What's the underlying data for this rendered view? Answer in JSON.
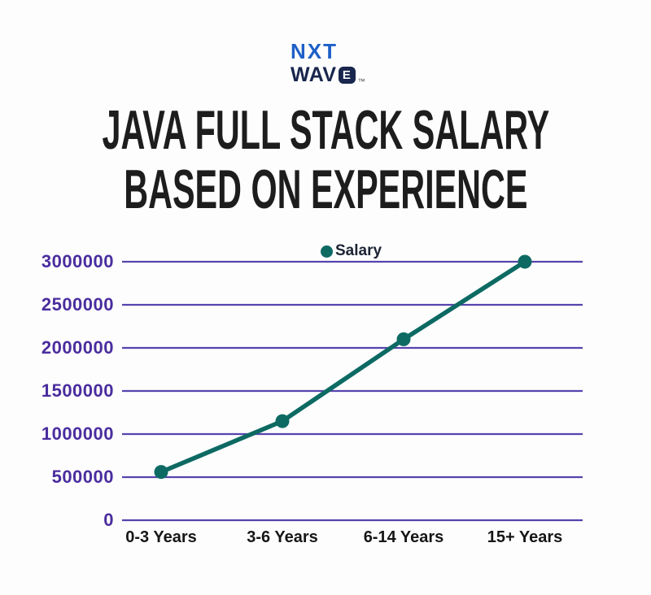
{
  "logo": {
    "line1": "NXT",
    "line2_prefix": "WAV",
    "line2_badge": "E",
    "trademark": "™",
    "colors": {
      "nxt": "#1e5fc8",
      "wave": "#19264d"
    }
  },
  "title": {
    "line1": "JAVA FULL STACK SALARY",
    "line2": "BASED ON EXPERIENCE"
  },
  "chart_data": {
    "type": "line",
    "title": "Java Full Stack Salary Based on Experience",
    "categories": [
      "0-3 Years",
      "3-6 Years",
      "6-14 Years",
      "15+ Years"
    ],
    "series": [
      {
        "name": "Salary",
        "values": [
          560000,
          1150000,
          2100000,
          3000000
        ]
      }
    ],
    "xlabel": "",
    "ylabel": "",
    "ylim": [
      0,
      3000000
    ],
    "ytick_step": 500000,
    "ytick_labels": [
      "3000000",
      "2500000",
      "2000000",
      "1500000",
      "1000000",
      "500000",
      "0"
    ],
    "grid": "horizontal-only",
    "legend_position": "top-center",
    "colors": {
      "line": "#0d6a63",
      "point": "#0d6a63",
      "gridline": "#5743ad",
      "ytick_text": "#4a2d9e",
      "xtick_text": "#161616",
      "legend_text": "#1c2333"
    }
  }
}
